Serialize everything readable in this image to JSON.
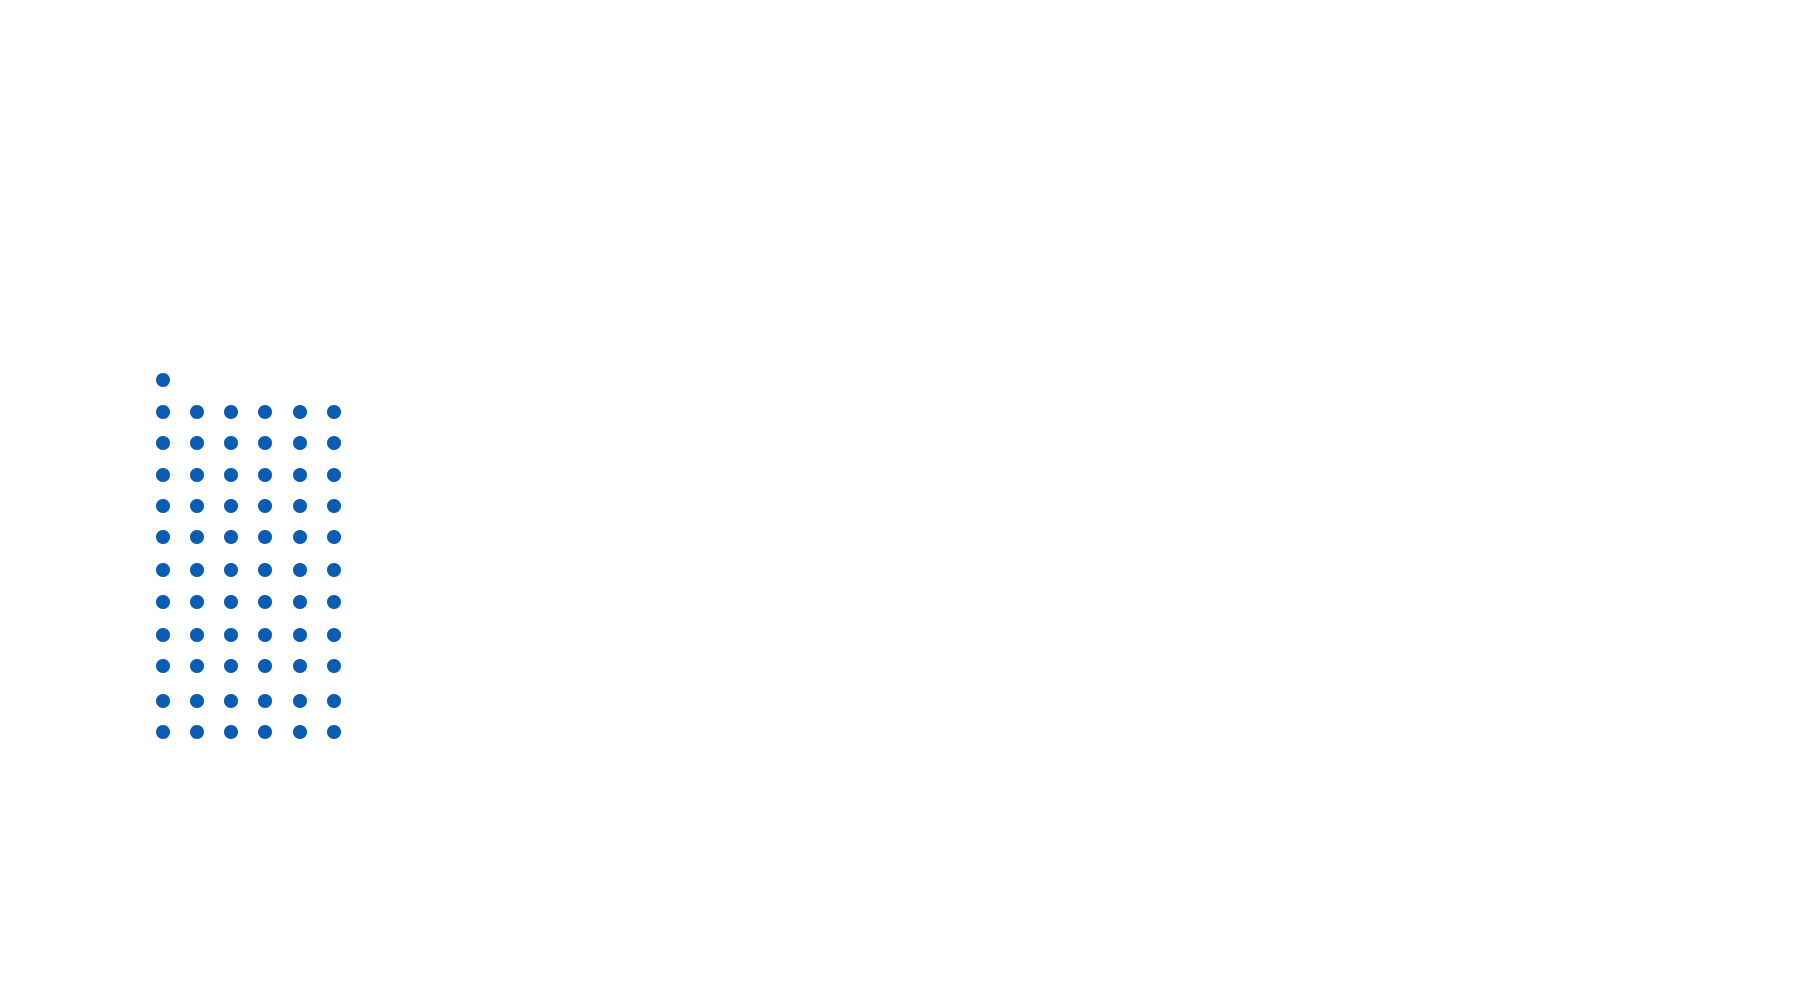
{
  "graphic": {
    "dot_color": "#0b5cb3",
    "background_color": "#ffffff",
    "rows": [
      1,
      6,
      6,
      6,
      6,
      6,
      6,
      6,
      6,
      6,
      6,
      6
    ],
    "total_dots": 67
  }
}
